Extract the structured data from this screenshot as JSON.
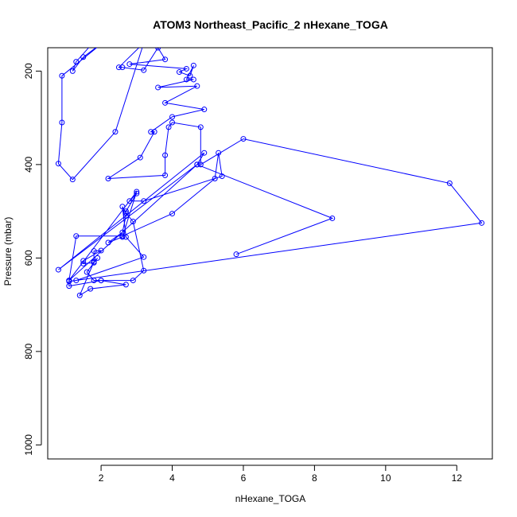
{
  "chart_data": {
    "type": "line",
    "title": "ATOM3 Northeast_Pacific_2 nHexane_TOGA",
    "xlabel": "nHexane_TOGA",
    "ylabel": "Pressure (mbar)",
    "x_ticks": [
      "2",
      "4",
      "6",
      "8",
      "10",
      "12"
    ],
    "y_ticks": [
      "200",
      "400",
      "600",
      "800",
      "1000"
    ],
    "xlim": [
      0.5,
      13.0
    ],
    "ylim": [
      1030,
      150
    ],
    "y_inverted": true,
    "grid": false,
    "marker": "open-circle",
    "series": [
      {
        "color": "#0000ff",
        "points": [
          [
            2.0,
            120
          ],
          [
            1.3,
            180
          ],
          [
            1.2,
            200
          ],
          [
            1.5,
            170
          ],
          [
            2.2,
            130
          ],
          [
            0.9,
            210
          ],
          [
            0.9,
            310
          ],
          [
            0.8,
            398
          ],
          [
            1.2,
            432
          ],
          [
            2.4,
            330
          ],
          [
            3.2,
            140
          ],
          [
            2.5,
            192
          ],
          [
            2.6,
            192
          ],
          [
            3.2,
            198
          ],
          [
            3.6,
            150
          ],
          [
            3.8,
            175
          ],
          [
            2.8,
            185
          ],
          [
            4.4,
            195
          ],
          [
            4.2,
            202
          ],
          [
            4.5,
            210
          ],
          [
            4.6,
            188
          ],
          [
            4.4,
            218
          ],
          [
            4.6,
            218
          ],
          [
            3.6,
            235
          ],
          [
            4.7,
            232
          ],
          [
            3.8,
            268
          ],
          [
            4.9,
            282
          ],
          [
            4.0,
            298
          ],
          [
            3.4,
            330
          ],
          [
            3.5,
            330
          ],
          [
            3.1,
            385
          ],
          [
            2.2,
            430
          ],
          [
            3.8,
            423
          ],
          [
            3.8,
            380
          ],
          [
            3.9,
            320
          ],
          [
            4.0,
            310
          ],
          [
            4.8,
            320
          ],
          [
            4.8,
            400
          ],
          [
            6.0,
            345
          ],
          [
            11.8,
            440
          ],
          [
            12.7,
            525
          ],
          [
            1.1,
            650
          ],
          [
            1.3,
            648
          ],
          [
            3.2,
            598
          ],
          [
            2.7,
            555
          ],
          [
            2.6,
            490
          ],
          [
            2.7,
            504
          ],
          [
            2.9,
            522
          ],
          [
            3.2,
            627
          ],
          [
            2.9,
            648
          ],
          [
            2.0,
            648
          ],
          [
            1.8,
            648
          ],
          [
            1.6,
            630
          ],
          [
            1.9,
            600
          ],
          [
            1.8,
            610
          ],
          [
            1.5,
            612
          ],
          [
            1.5,
            606
          ],
          [
            2.0,
            584
          ],
          [
            1.8,
            585
          ],
          [
            1.8,
            608
          ],
          [
            1.4,
            680
          ],
          [
            1.7,
            666
          ],
          [
            2.7,
            657
          ],
          [
            2.0,
            648
          ],
          [
            1.1,
            660
          ],
          [
            1.1,
            648
          ],
          [
            3.0,
            458
          ],
          [
            2.6,
            555
          ],
          [
            2.2,
            567
          ],
          [
            2.6,
            545
          ],
          [
            2.7,
            510
          ],
          [
            2.7,
            500
          ],
          [
            3.0,
            462
          ],
          [
            2.8,
            478
          ],
          [
            3.2,
            478
          ],
          [
            5.4,
            425
          ],
          [
            5.3,
            375
          ],
          [
            5.2,
            430
          ],
          [
            4.0,
            505
          ],
          [
            2.6,
            553
          ],
          [
            1.3,
            553
          ],
          [
            1.1,
            648
          ],
          [
            4.7,
            400
          ],
          [
            4.9,
            375
          ],
          [
            0.8,
            625
          ],
          [
            4.7,
            400
          ],
          [
            8.5,
            515
          ],
          [
            5.8,
            592
          ]
        ]
      }
    ]
  }
}
